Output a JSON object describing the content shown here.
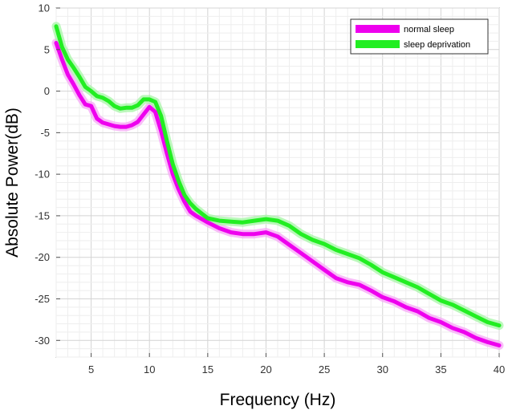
{
  "chart_data": {
    "type": "line",
    "title": "",
    "xlabel": "Frequency (Hz)",
    "ylabel": "Absolute Power(dB)",
    "xlim": [
      2,
      40
    ],
    "ylim": [
      -32,
      10
    ],
    "xticks": [
      5,
      10,
      15,
      20,
      25,
      30,
      35,
      40
    ],
    "yticks": [
      10,
      5,
      0,
      -5,
      -10,
      -15,
      -20,
      -25,
      -30
    ],
    "grid": true,
    "legend_position": "top-right",
    "series": [
      {
        "name": "normal sleep",
        "color": "#ee00ee",
        "band_color": "#f7a6f7",
        "x": [
          2,
          2.5,
          3,
          3.5,
          4,
          4.5,
          5,
          5.5,
          6,
          6.5,
          7,
          7.5,
          8,
          8.5,
          9,
          9.5,
          10,
          10.5,
          11,
          11.5,
          12,
          12.5,
          13,
          13.5,
          14,
          15,
          16,
          17,
          18,
          19,
          20,
          21,
          22,
          23,
          24,
          25,
          26,
          27,
          28,
          29,
          30,
          31,
          32,
          33,
          34,
          35,
          36,
          37,
          38,
          39,
          40
        ],
        "values": [
          5.8,
          3.8,
          2.0,
          0.8,
          -0.5,
          -1.6,
          -1.8,
          -3.3,
          -3.8,
          -4.0,
          -4.2,
          -4.3,
          -4.3,
          -4.1,
          -3.7,
          -2.8,
          -1.9,
          -2.5,
          -4.8,
          -7.5,
          -10.0,
          -11.8,
          -13.3,
          -14.5,
          -15.0,
          -15.8,
          -16.5,
          -17.0,
          -17.2,
          -17.2,
          -17.0,
          -17.5,
          -18.5,
          -19.5,
          -20.5,
          -21.5,
          -22.5,
          -23.0,
          -23.3,
          -24.0,
          -24.8,
          -25.3,
          -26.0,
          -26.5,
          -27.3,
          -27.8,
          -28.5,
          -29.0,
          -29.7,
          -30.2,
          -30.6
        ]
      },
      {
        "name": "sleep deprivation",
        "color": "#22ee22",
        "band_color": "#a6f5a6",
        "x": [
          2,
          2.5,
          3,
          3.5,
          4,
          4.5,
          5,
          5.5,
          6,
          6.5,
          7,
          7.5,
          8,
          8.5,
          9,
          9.5,
          10,
          10.5,
          11,
          11.5,
          12,
          12.5,
          13,
          13.5,
          14,
          15,
          16,
          17,
          18,
          19,
          20,
          21,
          22,
          23,
          24,
          25,
          26,
          27,
          28,
          29,
          30,
          31,
          32,
          33,
          34,
          35,
          36,
          37,
          38,
          39,
          40
        ],
        "values": [
          7.8,
          5.3,
          3.8,
          2.8,
          1.7,
          0.5,
          0.0,
          -0.6,
          -0.8,
          -1.2,
          -1.8,
          -2.1,
          -2.0,
          -2.0,
          -1.7,
          -1.0,
          -1.0,
          -1.3,
          -3.0,
          -6.0,
          -8.8,
          -10.8,
          -12.5,
          -13.5,
          -14.2,
          -15.3,
          -15.6,
          -15.7,
          -15.8,
          -15.6,
          -15.4,
          -15.6,
          -16.2,
          -17.2,
          -17.9,
          -18.4,
          -19.1,
          -19.6,
          -20.1,
          -20.9,
          -21.8,
          -22.4,
          -23.0,
          -23.6,
          -24.4,
          -25.2,
          -25.7,
          -26.4,
          -27.1,
          -27.8,
          -28.2
        ]
      }
    ]
  }
}
